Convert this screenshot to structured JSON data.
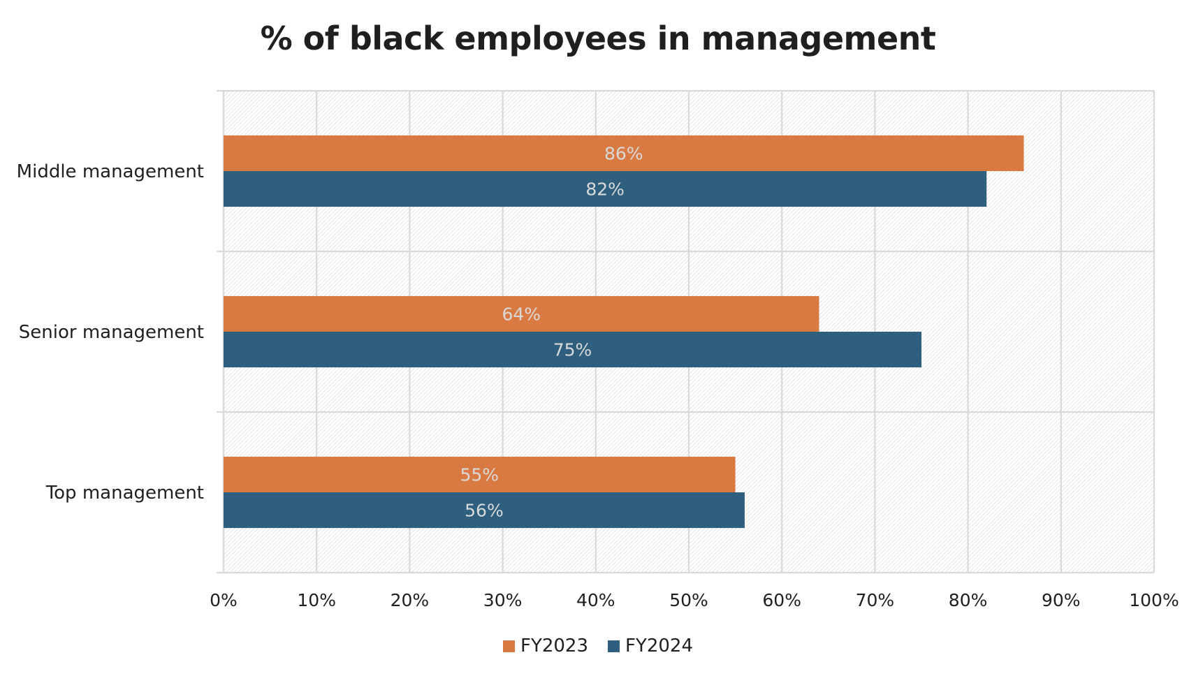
{
  "chart_data": {
    "type": "bar",
    "orientation": "horizontal",
    "title": "% of black employees in management",
    "categories": [
      "Middle management",
      "Senior management",
      "Top management"
    ],
    "series": [
      {
        "name": "FY2023",
        "color": "#D97A43",
        "values": [
          86,
          64,
          55
        ],
        "labels": [
          "86%",
          "64%",
          "55%"
        ]
      },
      {
        "name": "FY2024",
        "color": "#2E5F7E",
        "values": [
          82,
          75,
          56
        ],
        "labels": [
          "82%",
          "75%",
          "56%"
        ]
      }
    ],
    "xlim": [
      0,
      100
    ],
    "xticks": [
      0,
      10,
      20,
      30,
      40,
      50,
      60,
      70,
      80,
      90,
      100
    ],
    "xtick_labels": [
      "0%",
      "10%",
      "20%",
      "30%",
      "40%",
      "50%",
      "60%",
      "70%",
      "80%",
      "90%",
      "100%"
    ],
    "xlabel": "",
    "ylabel": "",
    "grid": true,
    "legend_position": "bottom"
  }
}
